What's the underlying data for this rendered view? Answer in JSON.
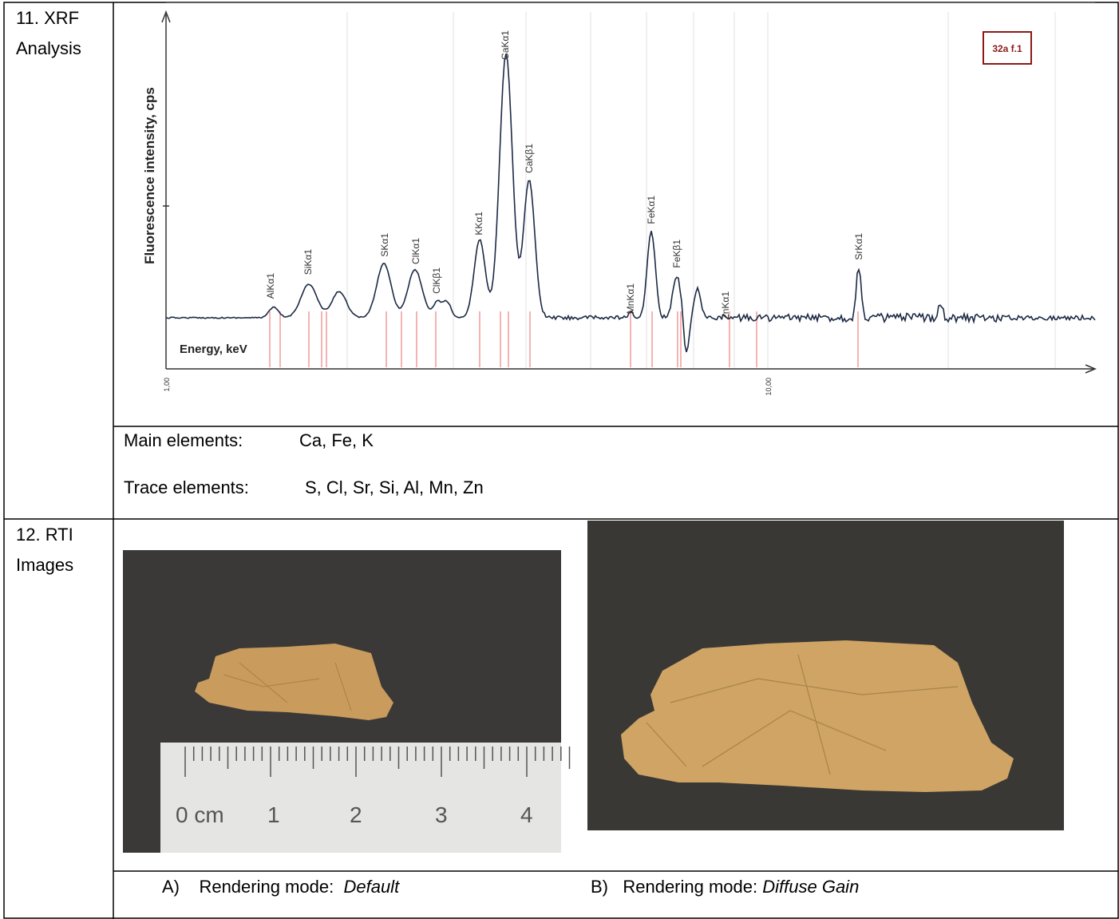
{
  "xrf": {
    "label": "11. XRF Analysis",
    "chart": {
      "y_axis_label": "Fluorescence intensity, cps",
      "x_axis_label": "Energy, keV",
      "xtick_labels": [
        "1,00",
        "10,00"
      ],
      "legend": "32a f.1",
      "peaks": [
        "AlKα1",
        "SiKα1",
        "SKα1",
        "ClKα1",
        "ClKβ1",
        "KKα1",
        "CaKα1",
        "CaKβ1",
        "MnKα1",
        "FeKα1",
        "FeKβ1",
        "ZnKα1",
        "SrKα1"
      ]
    },
    "main_elements": {
      "label": "Main elements:",
      "value": "Ca, Fe, K"
    },
    "trace_elements": {
      "label": "Trace elements:",
      "value": "S, Cl, Sr, Si, Al, Mn, Zn"
    }
  },
  "rti": {
    "label": "12. RTI Images",
    "ruler": [
      "0 cm",
      "1",
      "2",
      "3",
      "4"
    ],
    "captions": [
      {
        "prefix": "A)",
        "text": "Rendering mode:",
        "mode": "Default"
      },
      {
        "prefix": "B)",
        "text": "Rendering mode:",
        "mode": "Diffuse Gain"
      }
    ]
  }
}
